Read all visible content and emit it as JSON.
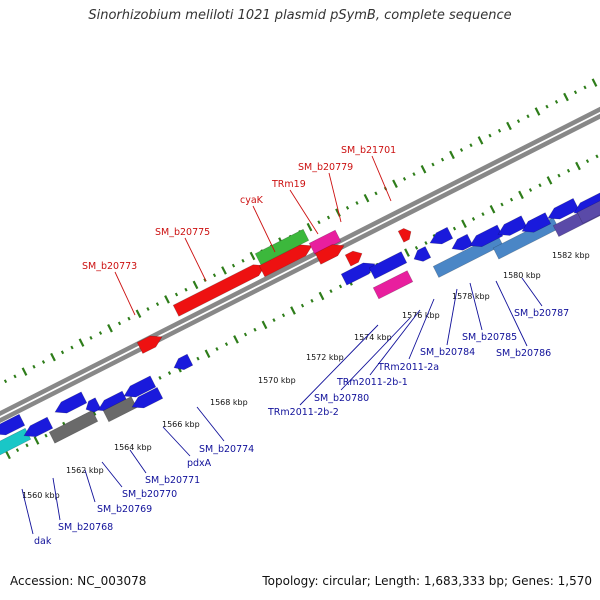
{
  "title": "Sinorhizobium meliloti 1021 plasmid pSymB, complete sequence",
  "footer": {
    "accession": "Accession: NC_003078",
    "stats": "Topology: circular; Length: 1,683,333 bp; Genes: 1,570"
  },
  "colors": {
    "backbone": "#888888",
    "tick": "#2e7d1a",
    "gene_blue": "#1a1adc",
    "gene_red": "#ee1111",
    "gene_green": "#3cb83c",
    "gene_magenta": "#e81f9e",
    "gene_gray": "#6a6a6a",
    "gene_cyan": "#19c7c7",
    "gene_steel": "#4a86c6",
    "gene_purple": "#5a4aa8",
    "label_upper": "#cc1111",
    "label_lower": "#11119a",
    "scale_text": "#111111"
  },
  "scale_labels": [
    "1560 kbp",
    "1562 kbp",
    "1564 kbp",
    "1566 kbp",
    "1568 kbp",
    "1570 kbp",
    "1572 kbp",
    "1574 kbp",
    "1576 kbp",
    "1578 kbp",
    "1580 kbp",
    "1582 kbp"
  ],
  "upper_gene_labels": [
    "SM_b20773",
    "SM_b20775",
    "cyaK",
    "TRm19",
    "SM_b20779",
    "SM_b21701"
  ],
  "lower_gene_labels": [
    "dak",
    "SM_b20768",
    "SM_b20769",
    "SM_b20770",
    "SM_b20771",
    "pdxA",
    "SM_b20774",
    "TRm2011-2b-2",
    "SM_b20780",
    "TRm2011-2b-1",
    "TRm2011-2a",
    "SM_b20784",
    "SM_b20785",
    "SM_b20786",
    "SM_b20787"
  ]
}
